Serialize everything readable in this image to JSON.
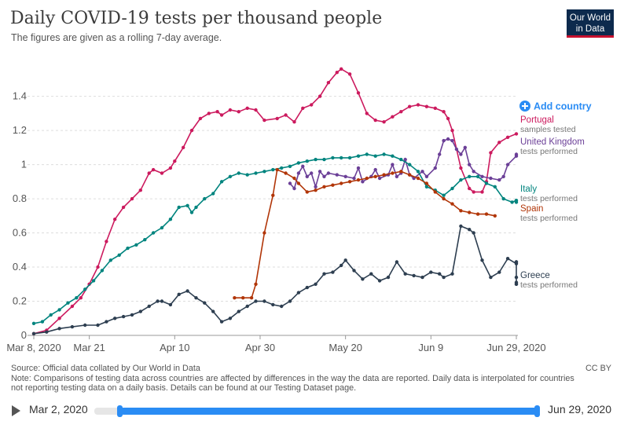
{
  "header": {
    "title": "Daily COVID-19 tests per thousand people",
    "subtitle": "The figures are given as a rolling 7-day average.",
    "logo_line1": "Our World",
    "logo_line2": "in Data"
  },
  "controls": {
    "add_country": "Add country"
  },
  "footer": {
    "source": "Source: Official data collated by Our World in Data",
    "note_line1": "Note: Comparisons of testing data across countries are affected by differences in the way the data are reported. Daily data is interpolated for countries",
    "note_line2": "not reporting testing data on a daily basis. Details can be found at our Testing Dataset page.",
    "license": "CC BY"
  },
  "timeline": {
    "start": "Mar 2, 2020",
    "end": "Jun 29, 2020"
  },
  "chart_data": {
    "type": "line",
    "title": "Daily COVID-19 tests per thousand people",
    "subtitle": "The figures are given as a rolling 7-day average.",
    "x_tick_labels": [
      "Mar 8, 2020",
      "Mar 21",
      "Apr 10",
      "Apr 30",
      "May 20",
      "Jun 9",
      "Jun 29, 2020"
    ],
    "x_tick_days": [
      0,
      13,
      33,
      53,
      73,
      93,
      113
    ],
    "x_range_days": [
      0,
      113
    ],
    "ylim": [
      0,
      1.55
    ],
    "y_ticks": [
      0,
      0.2,
      0.4,
      0.6,
      0.8,
      1,
      1.2,
      1.4
    ],
    "y_tick_labels": [
      "0",
      "0.2",
      "0.4",
      "0.6",
      "0.8",
      "1",
      "1.2",
      "1.4"
    ],
    "grid": "horizontal dashed",
    "series": [
      {
        "name": "Portugal",
        "sublabel": "samples tested",
        "color": "#cc1a5e",
        "points": [
          [
            0,
            0.01
          ],
          [
            3,
            0.03
          ],
          [
            6,
            0.1
          ],
          [
            9,
            0.17
          ],
          [
            11,
            0.22
          ],
          [
            13,
            0.3
          ],
          [
            15,
            0.4
          ],
          [
            17,
            0.55
          ],
          [
            19,
            0.68
          ],
          [
            21,
            0.75
          ],
          [
            23,
            0.8
          ],
          [
            25,
            0.85
          ],
          [
            27,
            0.95
          ],
          [
            28,
            0.97
          ],
          [
            30,
            0.95
          ],
          [
            32,
            0.98
          ],
          [
            33,
            1.02
          ],
          [
            35,
            1.1
          ],
          [
            37,
            1.2
          ],
          [
            39,
            1.27
          ],
          [
            41,
            1.3
          ],
          [
            43,
            1.31
          ],
          [
            44,
            1.29
          ],
          [
            46,
            1.32
          ],
          [
            48,
            1.31
          ],
          [
            50,
            1.33
          ],
          [
            52,
            1.32
          ],
          [
            54,
            1.26
          ],
          [
            57,
            1.27
          ],
          [
            59,
            1.29
          ],
          [
            61,
            1.25
          ],
          [
            63,
            1.33
          ],
          [
            65,
            1.35
          ],
          [
            67,
            1.4
          ],
          [
            69,
            1.48
          ],
          [
            71,
            1.54
          ],
          [
            72,
            1.56
          ],
          [
            74,
            1.53
          ],
          [
            76,
            1.42
          ],
          [
            78,
            1.3
          ],
          [
            80,
            1.26
          ],
          [
            82,
            1.25
          ],
          [
            84,
            1.28
          ],
          [
            86,
            1.31
          ],
          [
            88,
            1.34
          ],
          [
            90,
            1.35
          ],
          [
            92,
            1.34
          ],
          [
            94,
            1.33
          ],
          [
            96,
            1.31
          ],
          [
            97,
            1.27
          ],
          [
            98,
            1.2
          ],
          [
            100,
            0.98
          ],
          [
            102,
            0.86
          ],
          [
            103,
            0.84
          ],
          [
            105,
            0.84
          ],
          [
            106,
            0.9
          ],
          [
            107,
            1.07
          ],
          [
            109,
            1.13
          ],
          [
            111,
            1.16
          ],
          [
            113,
            1.18
          ]
        ]
      },
      {
        "name": "United Kingdom",
        "sublabel": "tests performed",
        "color": "#6b3f97",
        "points": [
          [
            60,
            0.89
          ],
          [
            61,
            0.86
          ],
          [
            62,
            0.95
          ],
          [
            63,
            0.99
          ],
          [
            64,
            0.93
          ],
          [
            65,
            0.95
          ],
          [
            66,
            0.87
          ],
          [
            67,
            0.96
          ],
          [
            68,
            0.93
          ],
          [
            69,
            0.95
          ],
          [
            71,
            0.94
          ],
          [
            73,
            0.93
          ],
          [
            75,
            0.92
          ],
          [
            76,
            0.98
          ],
          [
            77,
            0.9
          ],
          [
            79,
            0.93
          ],
          [
            80,
            0.97
          ],
          [
            81,
            0.92
          ],
          [
            83,
            0.94
          ],
          [
            84,
            1.0
          ],
          [
            85,
            0.93
          ],
          [
            86,
            0.95
          ],
          [
            87,
            1.03
          ],
          [
            88,
            0.94
          ],
          [
            89,
            0.92
          ],
          [
            91,
            0.96
          ],
          [
            92,
            0.93
          ],
          [
            94,
            0.98
          ],
          [
            95,
            1.06
          ],
          [
            96,
            1.14
          ],
          [
            97,
            1.15
          ],
          [
            98,
            1.14
          ],
          [
            99,
            1.09
          ],
          [
            100,
            1.06
          ],
          [
            101,
            1.1
          ],
          [
            102,
            1.0
          ],
          [
            103,
            0.96
          ],
          [
            105,
            0.93
          ],
          [
            107,
            0.92
          ],
          [
            109,
            0.91
          ],
          [
            110,
            0.93
          ],
          [
            111,
            1.0
          ],
          [
            113,
            1.05
          ],
          [
            114,
            1.06
          ]
        ]
      },
      {
        "name": "Italy",
        "sublabel": "tests performed",
        "color": "#00847e",
        "points": [
          [
            0,
            0.07
          ],
          [
            2,
            0.08
          ],
          [
            4,
            0.12
          ],
          [
            6,
            0.15
          ],
          [
            8,
            0.19
          ],
          [
            10,
            0.22
          ],
          [
            12,
            0.27
          ],
          [
            14,
            0.32
          ],
          [
            16,
            0.38
          ],
          [
            18,
            0.44
          ],
          [
            20,
            0.47
          ],
          [
            22,
            0.51
          ],
          [
            24,
            0.53
          ],
          [
            26,
            0.56
          ],
          [
            28,
            0.6
          ],
          [
            30,
            0.63
          ],
          [
            32,
            0.68
          ],
          [
            34,
            0.75
          ],
          [
            36,
            0.76
          ],
          [
            37,
            0.72
          ],
          [
            38,
            0.75
          ],
          [
            40,
            0.8
          ],
          [
            42,
            0.83
          ],
          [
            44,
            0.9
          ],
          [
            46,
            0.93
          ],
          [
            48,
            0.95
          ],
          [
            50,
            0.94
          ],
          [
            52,
            0.95
          ],
          [
            54,
            0.96
          ],
          [
            56,
            0.97
          ],
          [
            58,
            0.98
          ],
          [
            60,
            0.99
          ],
          [
            62,
            1.01
          ],
          [
            64,
            1.02
          ],
          [
            66,
            1.03
          ],
          [
            68,
            1.03
          ],
          [
            70,
            1.04
          ],
          [
            72,
            1.04
          ],
          [
            74,
            1.04
          ],
          [
            76,
            1.05
          ],
          [
            78,
            1.06
          ],
          [
            80,
            1.05
          ],
          [
            82,
            1.06
          ],
          [
            84,
            1.05
          ],
          [
            86,
            1.03
          ],
          [
            88,
            1.0
          ],
          [
            90,
            0.96
          ],
          [
            92,
            0.87
          ],
          [
            94,
            0.85
          ],
          [
            96,
            0.82
          ],
          [
            98,
            0.86
          ],
          [
            100,
            0.91
          ],
          [
            102,
            0.93
          ],
          [
            104,
            0.93
          ],
          [
            106,
            0.89
          ],
          [
            108,
            0.87
          ],
          [
            110,
            0.8
          ],
          [
            112,
            0.78
          ],
          [
            113,
            0.79
          ],
          [
            115,
            0.78
          ]
        ]
      },
      {
        "name": "Spain",
        "sublabel": "tests performed",
        "color": "#b13507",
        "points": [
          [
            47,
            0.22
          ],
          [
            49,
            0.22
          ],
          [
            51,
            0.22
          ],
          [
            52,
            0.3
          ],
          [
            54,
            0.6
          ],
          [
            56,
            0.82
          ],
          [
            57,
            0.97
          ],
          [
            59,
            0.95
          ],
          [
            61,
            0.92
          ],
          [
            62,
            0.89
          ],
          [
            64,
            0.84
          ],
          [
            66,
            0.85
          ],
          [
            68,
            0.87
          ],
          [
            70,
            0.88
          ],
          [
            72,
            0.89
          ],
          [
            74,
            0.9
          ],
          [
            76,
            0.91
          ],
          [
            78,
            0.92
          ],
          [
            80,
            0.93
          ],
          [
            82,
            0.94
          ],
          [
            84,
            0.95
          ],
          [
            86,
            0.96
          ],
          [
            88,
            0.94
          ],
          [
            90,
            0.92
          ],
          [
            92,
            0.89
          ],
          [
            94,
            0.84
          ],
          [
            96,
            0.8
          ],
          [
            98,
            0.77
          ],
          [
            100,
            0.73
          ],
          [
            102,
            0.72
          ],
          [
            104,
            0.71
          ],
          [
            106,
            0.71
          ],
          [
            108,
            0.7
          ]
        ]
      },
      {
        "name": "Greece",
        "sublabel": "tests performed",
        "color": "#2d3e50",
        "points": [
          [
            0,
            0.01
          ],
          [
            3,
            0.02
          ],
          [
            6,
            0.04
          ],
          [
            9,
            0.05
          ],
          [
            12,
            0.06
          ],
          [
            15,
            0.06
          ],
          [
            17,
            0.08
          ],
          [
            19,
            0.1
          ],
          [
            21,
            0.11
          ],
          [
            23,
            0.12
          ],
          [
            25,
            0.14
          ],
          [
            27,
            0.17
          ],
          [
            29,
            0.2
          ],
          [
            30,
            0.2
          ],
          [
            32,
            0.18
          ],
          [
            34,
            0.24
          ],
          [
            36,
            0.26
          ],
          [
            38,
            0.22
          ],
          [
            40,
            0.19
          ],
          [
            42,
            0.14
          ],
          [
            44,
            0.08
          ],
          [
            46,
            0.1
          ],
          [
            48,
            0.14
          ],
          [
            50,
            0.17
          ],
          [
            52,
            0.2
          ],
          [
            54,
            0.2
          ],
          [
            56,
            0.18
          ],
          [
            58,
            0.17
          ],
          [
            60,
            0.2
          ],
          [
            62,
            0.25
          ],
          [
            64,
            0.28
          ],
          [
            66,
            0.3
          ],
          [
            68,
            0.36
          ],
          [
            70,
            0.37
          ],
          [
            72,
            0.41
          ],
          [
            73,
            0.44
          ],
          [
            75,
            0.38
          ],
          [
            77,
            0.33
          ],
          [
            79,
            0.36
          ],
          [
            81,
            0.32
          ],
          [
            83,
            0.34
          ],
          [
            85,
            0.43
          ],
          [
            87,
            0.36
          ],
          [
            89,
            0.35
          ],
          [
            91,
            0.34
          ],
          [
            93,
            0.37
          ],
          [
            95,
            0.36
          ],
          [
            96,
            0.34
          ],
          [
            98,
            0.36
          ],
          [
            100,
            0.64
          ],
          [
            102,
            0.62
          ],
          [
            103,
            0.6
          ],
          [
            105,
            0.44
          ],
          [
            107,
            0.34
          ],
          [
            109,
            0.37
          ],
          [
            111,
            0.45
          ],
          [
            113,
            0.42
          ],
          [
            115,
            0.43
          ],
          [
            117,
            0.43
          ],
          [
            119,
            0.34
          ],
          [
            121,
            0.3
          ],
          [
            123,
            0.3
          ],
          [
            124,
            0.31
          ]
        ]
      }
    ]
  }
}
